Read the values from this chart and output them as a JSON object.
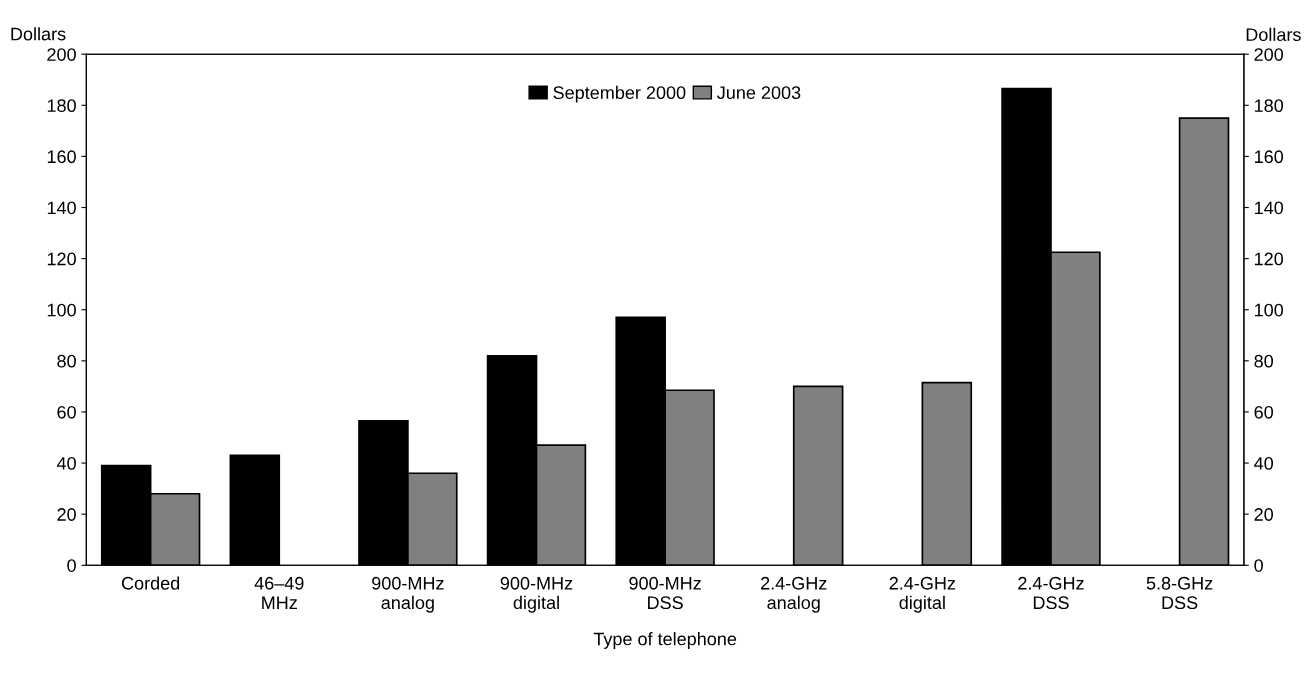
{
  "chart_data": {
    "type": "bar",
    "xlabel": "Type of telephone",
    "ylabel": "Dollars",
    "y2label": "Dollars",
    "categories": [
      "Corded",
      "46–49\nMHz",
      "900-MHz\nanalog",
      "900-MHz\ndigital",
      "900-MHz\nDSS",
      "2.4-GHz\nanalog",
      "2.4-GHz\ndigital",
      "2.4-GHz\nDSS",
      "5.8-GHz\nDSS"
    ],
    "series": [
      {
        "name": "September 2000",
        "color": "#000000",
        "values": [
          39,
          43,
          56.5,
          82,
          97,
          null,
          null,
          186.5,
          null
        ]
      },
      {
        "name": "June 2003",
        "color": "#808080",
        "values": [
          28,
          null,
          36,
          47,
          68.5,
          70,
          71.5,
          122.5,
          175
        ]
      }
    ],
    "ylim": [
      0,
      200
    ],
    "yticks": [
      0,
      20,
      40,
      60,
      80,
      100,
      120,
      140,
      160,
      180,
      200
    ],
    "y2lim": [
      0,
      200
    ],
    "y2ticks": [
      0,
      20,
      40,
      60,
      80,
      100,
      120,
      140,
      160,
      180,
      200
    ],
    "grid": false,
    "legend": "top"
  }
}
